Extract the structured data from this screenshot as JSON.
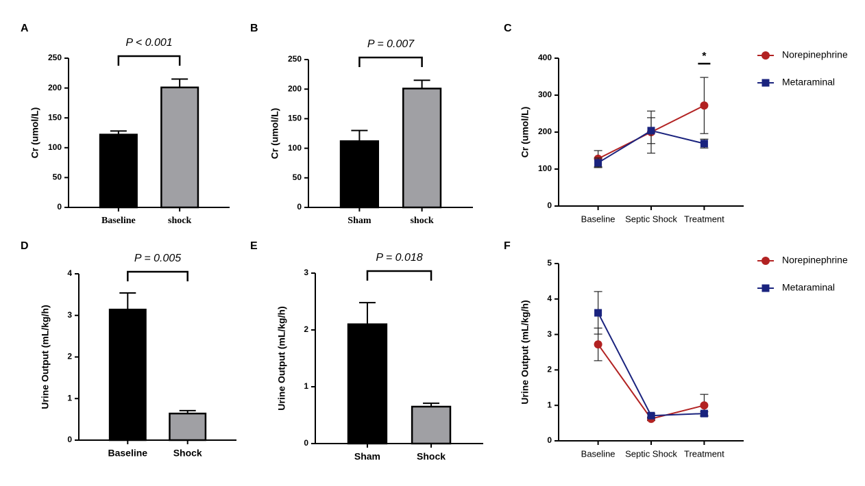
{
  "chart_data": [
    {
      "type": "bar",
      "panel_label": "A",
      "annotation": "P < 0.001",
      "ylabel": "Cr (umol/L)",
      "categories": [
        "Baseline",
        "shock"
      ],
      "values": [
        122,
        201
      ],
      "errors": [
        6,
        14
      ],
      "colors": [
        "#000000",
        "#a0a0a4"
      ],
      "ylim": [
        0,
        250
      ],
      "yticks": [
        0,
        50,
        100,
        150,
        200,
        250
      ]
    },
    {
      "type": "bar",
      "panel_label": "B",
      "annotation": "P = 0.007",
      "ylabel": "Cr (umol/L)",
      "categories": [
        "Sham",
        "shock"
      ],
      "values": [
        112,
        201
      ],
      "errors": [
        18,
        14
      ],
      "colors": [
        "#000000",
        "#a0a0a4"
      ],
      "ylim": [
        0,
        250
      ],
      "yticks": [
        0,
        50,
        100,
        150,
        200,
        250
      ]
    },
    {
      "type": "line",
      "panel_label": "C",
      "annotation": "*",
      "ylabel": "Cr (umol/L)",
      "categories": [
        "Baseline",
        "Septic Shock",
        "Treatment"
      ],
      "series": [
        {
          "name": "Norepinephrine",
          "color": "#b22222",
          "marker": "circle",
          "values": [
            128,
            200,
            272
          ],
          "errors": [
            22,
            57,
            76
          ]
        },
        {
          "name": "Metaraminal",
          "color": "#1a237e",
          "marker": "square",
          "values": [
            117,
            204,
            169
          ],
          "errors": [
            13,
            35,
            12
          ]
        }
      ],
      "ylim": [
        0,
        400
      ],
      "yticks": [
        0,
        100,
        200,
        300,
        400
      ],
      "legend": "right"
    },
    {
      "type": "bar",
      "panel_label": "D",
      "annotation": "P = 0.005",
      "ylabel": "Urine Output (mL/kg/h)",
      "categories": [
        "Baseline",
        "Shock"
      ],
      "values": [
        3.14,
        0.64
      ],
      "errors": [
        0.4,
        0.07
      ],
      "colors": [
        "#000000",
        "#a0a0a4"
      ],
      "ylim": [
        0,
        4
      ],
      "yticks": [
        0,
        1,
        2,
        3,
        4
      ]
    },
    {
      "type": "bar",
      "panel_label": "E",
      "annotation": "P = 0.018",
      "ylabel": "Urine Output (mL/kg/h)",
      "categories": [
        "Sham",
        "Shock"
      ],
      "values": [
        2.1,
        0.65
      ],
      "errors": [
        0.38,
        0.06
      ],
      "colors": [
        "#000000",
        "#a0a0a4"
      ],
      "ylim": [
        0,
        3
      ],
      "yticks": [
        0,
        1,
        2,
        3
      ]
    },
    {
      "type": "line",
      "panel_label": "F",
      "ylabel": "Urine Output (mL/kg/h)",
      "categories": [
        "Baseline",
        "Septic Shock",
        "Treatment"
      ],
      "series": [
        {
          "name": "Norepinephrine",
          "color": "#b22222",
          "marker": "circle",
          "values": [
            2.72,
            0.62,
            1.0
          ],
          "errors": [
            0.46,
            0.05,
            0.31
          ]
        },
        {
          "name": "Metaraminal",
          "color": "#1a237e",
          "marker": "square",
          "values": [
            3.61,
            0.71,
            0.77
          ],
          "errors": [
            0.6,
            0.05,
            0.05
          ]
        }
      ],
      "ylim": [
        0,
        5
      ],
      "yticks": [
        0,
        1,
        2,
        3,
        4,
        5
      ],
      "legend": "right"
    }
  ]
}
